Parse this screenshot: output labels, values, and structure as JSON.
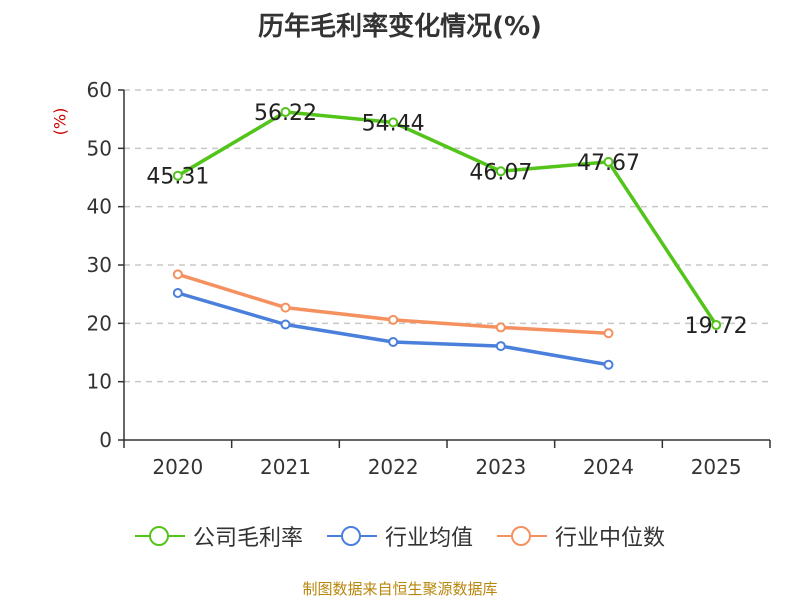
{
  "chart_data": {
    "type": "line",
    "title": "历年毛利率变化情况(%)",
    "ylabel": "(%)",
    "xlabel": "",
    "categories": [
      "2020",
      "2021",
      "2022",
      "2023",
      "2024",
      "2025"
    ],
    "ylim": [
      0,
      60
    ],
    "yticks": [
      0,
      10,
      20,
      30,
      40,
      50,
      60
    ],
    "grid": true,
    "legend_position": "bottom",
    "series": [
      {
        "name": "公司毛利率",
        "color": "#52c41a",
        "values": [
          45.31,
          56.22,
          54.44,
          46.07,
          47.67,
          19.72
        ],
        "labels": [
          "45.31",
          "56.22",
          "54.44",
          "46.07",
          "47.67",
          "19.72"
        ]
      },
      {
        "name": "行业均值",
        "color": "#4a7fdb",
        "values": [
          25.2,
          19.8,
          16.8,
          16.1,
          12.9,
          null
        ]
      },
      {
        "name": "行业中位数",
        "color": "#f4915e",
        "values": [
          28.4,
          22.7,
          20.6,
          19.3,
          18.3,
          null
        ]
      }
    ]
  },
  "footer": {
    "source": "制图数据来自恒生聚源数据库"
  }
}
